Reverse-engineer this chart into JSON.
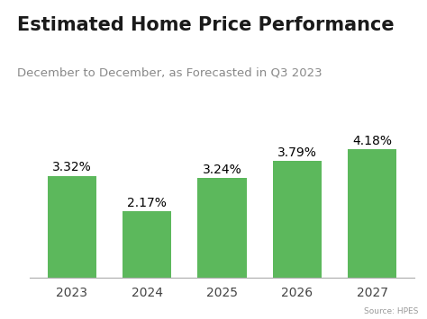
{
  "title": "Estimated Home Price Performance",
  "subtitle": "December to December, as Forecasted in Q3 2023",
  "source": "Source: HPES",
  "categories": [
    "2023",
    "2024",
    "2025",
    "2026",
    "2027"
  ],
  "values": [
    3.32,
    2.17,
    3.24,
    3.79,
    4.18
  ],
  "labels": [
    "3.32%",
    "2.17%",
    "3.24%",
    "3.79%",
    "4.18%"
  ],
  "bar_color": "#5cb85c",
  "background_color": "#ffffff",
  "title_fontsize": 15,
  "subtitle_fontsize": 9.5,
  "label_fontsize": 10,
  "tick_fontsize": 10,
  "source_fontsize": 6.5,
  "ylim": [
    0,
    5.2
  ],
  "accent_color": "#29abe2"
}
